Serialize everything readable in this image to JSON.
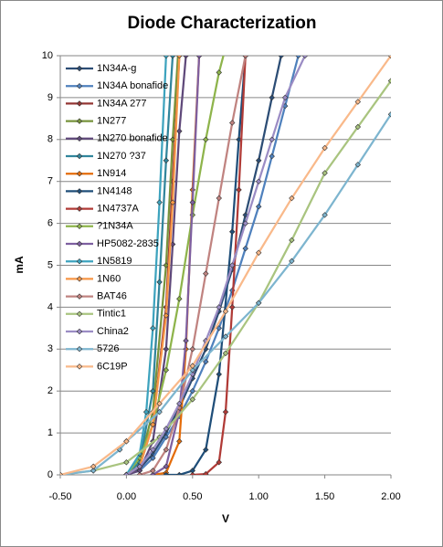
{
  "chart_data": {
    "type": "line",
    "title": "Diode Characterization",
    "x_label": "V",
    "y_label": "mA",
    "xlim": [
      -0.5,
      2.0
    ],
    "ylim": [
      0,
      10
    ],
    "xticks": [
      {
        "value": -0.5,
        "label": "-0.50"
      },
      {
        "value": 0,
        "label": "0.00"
      },
      {
        "value": 0.5,
        "label": "0.50"
      },
      {
        "value": 1.0,
        "label": "1.00"
      },
      {
        "value": 1.5,
        "label": "1.50"
      },
      {
        "value": 2.0,
        "label": "2.00"
      }
    ],
    "yticks": [
      0,
      1,
      2,
      3,
      4,
      5,
      6,
      7,
      8,
      9,
      10
    ],
    "grid": true,
    "legend": "top-left",
    "series": [
      {
        "name": "1N34A-g",
        "color": "#2C4D75",
        "x": [
          0,
          0.1,
          0.2,
          0.3,
          0.4,
          0.5,
          0.6,
          0.7,
          0.8,
          0.9,
          1.0,
          1.1,
          1.17
        ],
        "values": [
          0,
          0.15,
          0.5,
          1.0,
          1.6,
          2.3,
          3.0,
          3.9,
          4.9,
          6.2,
          7.5,
          9.0,
          10
        ]
      },
      {
        "name": "1N34A bonafide",
        "color": "#4F81BD",
        "x": [
          0,
          0.1,
          0.2,
          0.3,
          0.4,
          0.5,
          0.6,
          0.7,
          0.8,
          0.9,
          1.0,
          1.1,
          1.2,
          1.3
        ],
        "values": [
          0,
          0.1,
          0.4,
          0.9,
          1.4,
          2.0,
          2.7,
          3.5,
          4.4,
          5.4,
          6.4,
          7.6,
          8.8,
          10
        ]
      },
      {
        "name": "1N34A 277",
        "color": "#943634",
        "x": [
          0,
          0.1,
          0.2,
          0.3,
          0.35,
          0.4
        ],
        "values": [
          0,
          0.2,
          1.2,
          4,
          7,
          10
        ]
      },
      {
        "name": "1N277",
        "color": "#77933C",
        "x": [
          0,
          0.1,
          0.2,
          0.3,
          0.35,
          0.4
        ],
        "values": [
          0,
          0.3,
          1.5,
          5,
          8,
          10.5
        ]
      },
      {
        "name": "1N270 bonafide",
        "color": "#5F497A",
        "x": [
          0,
          0.1,
          0.2,
          0.3,
          0.35,
          0.4,
          0.45
        ],
        "values": [
          0,
          0.1,
          0.8,
          3,
          5.5,
          8.2,
          10
        ]
      },
      {
        "name": "1N270 ?37",
        "color": "#31859C",
        "x": [
          0,
          0.1,
          0.2,
          0.25,
          0.3,
          0.35
        ],
        "values": [
          0,
          0.3,
          2,
          4.6,
          7.5,
          10
        ]
      },
      {
        "name": "1N914",
        "color": "#E46C0A",
        "x": [
          0.2,
          0.3,
          0.4,
          0.45,
          0.5,
          0.55
        ],
        "values": [
          0,
          0.05,
          0.8,
          3,
          6.8,
          10
        ]
      },
      {
        "name": "1N4148",
        "color": "#1F4E79",
        "x": [
          0.3,
          0.4,
          0.5,
          0.6,
          0.7,
          0.8,
          0.85,
          0.9
        ],
        "values": [
          0,
          0,
          0.1,
          0.6,
          2.4,
          5.8,
          8,
          10
        ]
      },
      {
        "name": "1N4737A",
        "color": "#B03A36",
        "x": [
          0.5,
          0.6,
          0.7,
          0.75,
          0.8,
          0.85,
          0.9
        ],
        "values": [
          0,
          0.02,
          0.3,
          1.5,
          4,
          6.8,
          10
        ]
      },
      {
        "name": "?1N34A",
        "color": "#8EB44B",
        "x": [
          0,
          0.1,
          0.2,
          0.3,
          0.4,
          0.5,
          0.6,
          0.7,
          0.75
        ],
        "values": [
          0,
          0.4,
          1.2,
          2.5,
          4.2,
          6.2,
          8.0,
          9.6,
          10.2
        ]
      },
      {
        "name": "HP5082-2835",
        "color": "#7E5FA0",
        "x": [
          0.2,
          0.3,
          0.4,
          0.45,
          0.5,
          0.55
        ],
        "values": [
          0,
          0.2,
          1.5,
          3.2,
          6.5,
          10
        ]
      },
      {
        "name": "1N5819",
        "color": "#3DA3BE",
        "x": [
          0,
          0.1,
          0.15,
          0.2,
          0.25,
          0.3
        ],
        "values": [
          0,
          0.5,
          1.5,
          3.5,
          6.5,
          10
        ]
      },
      {
        "name": "1N60",
        "color": "#F79646",
        "x": [
          0,
          0.1,
          0.2,
          0.3,
          0.35,
          0.4
        ],
        "values": [
          0,
          0.2,
          1.2,
          3.8,
          6.5,
          10
        ]
      },
      {
        "name": "BAT46",
        "color": "#C08380",
        "x": [
          0.1,
          0.2,
          0.3,
          0.4,
          0.5,
          0.6,
          0.7,
          0.8,
          0.9
        ],
        "values": [
          0,
          0.1,
          0.6,
          1.6,
          3,
          4.8,
          6.6,
          8.4,
          10
        ]
      },
      {
        "name": "Tintic1",
        "color": "#A9C47F",
        "x": [
          -0.5,
          -0.25,
          0,
          0.25,
          0.5,
          0.75,
          1.0,
          1.25,
          1.5,
          1.75,
          2.0
        ],
        "values": [
          0,
          0.1,
          0.3,
          0.9,
          1.8,
          2.9,
          4.1,
          5.6,
          7.2,
          8.3,
          9.4
        ]
      },
      {
        "name": "China2",
        "color": "#9B8CC4",
        "x": [
          0,
          0.1,
          0.2,
          0.3,
          0.4,
          0.5,
          0.6,
          0.7,
          0.8,
          0.9,
          1.0,
          1.1,
          1.2,
          1.35
        ],
        "values": [
          0,
          0.2,
          0.6,
          1.1,
          1.7,
          2.4,
          3.2,
          4.0,
          5.0,
          6.0,
          7.0,
          8.0,
          9.0,
          10
        ]
      },
      {
        "name": "5726",
        "color": "#7DB5CF",
        "x": [
          -0.5,
          -0.25,
          -0.05,
          0,
          0.25,
          0.5,
          0.75,
          1.0,
          1.25,
          1.5,
          1.75,
          2.0
        ],
        "values": [
          0,
          0.1,
          0.6,
          0.8,
          1.5,
          2.5,
          3.3,
          4.1,
          5.1,
          6.2,
          7.4,
          8.6
        ]
      },
      {
        "name": "6C19P",
        "color": "#F9B98A",
        "x": [
          -0.5,
          -0.25,
          0,
          0.25,
          0.5,
          0.75,
          1.0,
          1.25,
          1.5,
          1.75,
          2.0
        ],
        "values": [
          0,
          0.2,
          0.8,
          1.7,
          2.6,
          3.9,
          5.3,
          6.6,
          7.8,
          8.9,
          10
        ]
      }
    ]
  }
}
